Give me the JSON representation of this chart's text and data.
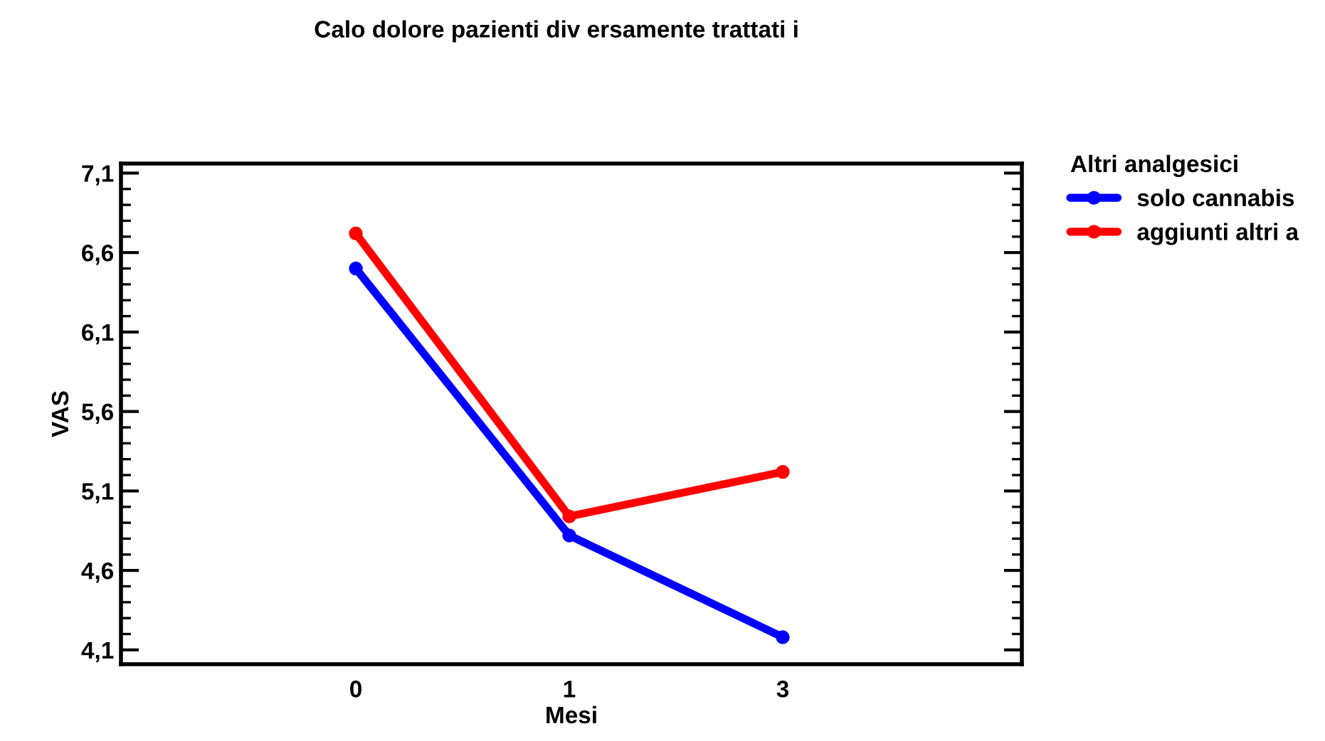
{
  "chart_data": {
    "type": "line",
    "title": "Calo dolore pazienti div ersamente trattati i",
    "xlabel": "Mesi",
    "ylabel": "VAS",
    "legend_title": "Altri analgesici",
    "categories": [
      "0",
      "1",
      "3"
    ],
    "series": [
      {
        "name": "solo cannabis",
        "color": "#0000ff",
        "values": [
          6.5,
          4.82,
          4.18
        ]
      },
      {
        "name": "aggiunti altri a",
        "color": "#ff0000",
        "values": [
          6.72,
          4.94,
          5.22
        ]
      }
    ],
    "ylim": [
      4.01,
      7.16
    ],
    "yticks": [
      {
        "value": 4.1,
        "label": "4,1"
      },
      {
        "value": 4.6,
        "label": "4,6"
      },
      {
        "value": 5.1,
        "label": "5,1"
      },
      {
        "value": 5.6,
        "label": "5,6"
      },
      {
        "value": 6.1,
        "label": "6,1"
      },
      {
        "value": 6.6,
        "label": "6,6"
      },
      {
        "value": 7.1,
        "label": "7,1"
      }
    ],
    "marker": "circle",
    "line_style": "solid",
    "legend": "top right",
    "grid": false
  }
}
